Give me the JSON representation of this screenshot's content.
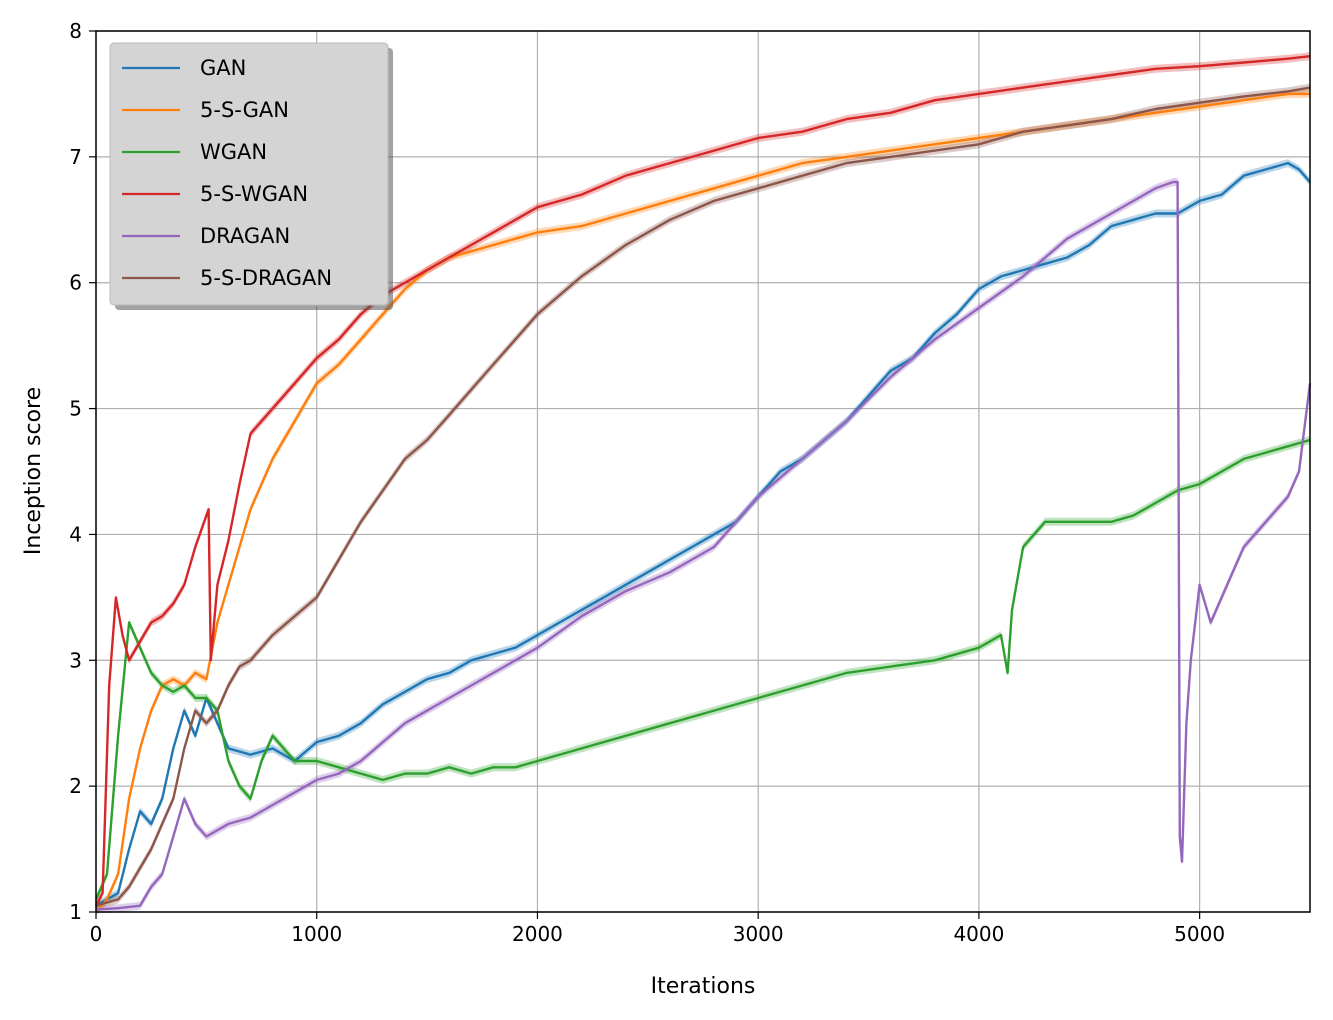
{
  "chart_data": {
    "type": "line",
    "title": "",
    "xlabel": "Iterations",
    "ylabel": "Inception score",
    "xlim": [
      0,
      5500
    ],
    "ylim": [
      1,
      8
    ],
    "xticks": [
      0,
      1000,
      2000,
      3000,
      4000,
      5000
    ],
    "yticks": [
      1,
      2,
      3,
      4,
      5,
      6,
      7,
      8
    ],
    "grid": true,
    "legend": "top-left",
    "series": [
      {
        "name": "GAN",
        "color": "#1f77b4",
        "x": [
          0,
          50,
          100,
          150,
          200,
          250,
          300,
          350,
          400,
          450,
          500,
          550,
          600,
          700,
          800,
          900,
          1000,
          1100,
          1200,
          1300,
          1400,
          1500,
          1600,
          1700,
          1800,
          1900,
          2000,
          2100,
          2200,
          2300,
          2400,
          2500,
          2600,
          2700,
          2800,
          2900,
          3000,
          3100,
          3200,
          3300,
          3400,
          3500,
          3600,
          3700,
          3800,
          3900,
          4000,
          4100,
          4200,
          4300,
          4400,
          4500,
          4600,
          4700,
          4800,
          4900,
          5000,
          5100,
          5200,
          5300,
          5400,
          5450,
          5500
        ],
        "y": [
          1.05,
          1.1,
          1.15,
          1.5,
          1.8,
          1.7,
          1.9,
          2.3,
          2.6,
          2.4,
          2.7,
          2.5,
          2.3,
          2.25,
          2.3,
          2.2,
          2.35,
          2.4,
          2.5,
          2.65,
          2.75,
          2.85,
          2.9,
          3.0,
          3.05,
          3.1,
          3.2,
          3.3,
          3.4,
          3.5,
          3.6,
          3.7,
          3.8,
          3.9,
          4.0,
          4.1,
          4.3,
          4.5,
          4.6,
          4.75,
          4.9,
          5.1,
          5.3,
          5.4,
          5.6,
          5.75,
          5.95,
          6.05,
          6.1,
          6.15,
          6.2,
          6.3,
          6.45,
          6.5,
          6.55,
          6.55,
          6.65,
          6.7,
          6.85,
          6.9,
          6.95,
          6.9,
          6.8
        ]
      },
      {
        "name": "5-S-GAN",
        "color": "#ff7f0e",
        "x": [
          0,
          50,
          100,
          150,
          200,
          250,
          300,
          350,
          400,
          450,
          500,
          550,
          600,
          650,
          700,
          800,
          900,
          1000,
          1100,
          1200,
          1300,
          1400,
          1500,
          1600,
          1700,
          1800,
          1900,
          2000,
          2200,
          2400,
          2600,
          2800,
          3000,
          3200,
          3400,
          3600,
          3800,
          4000,
          4200,
          4400,
          4600,
          4800,
          5000,
          5200,
          5400,
          5500
        ],
        "y": [
          1.0,
          1.1,
          1.3,
          1.9,
          2.3,
          2.6,
          2.8,
          2.85,
          2.8,
          2.9,
          2.85,
          3.3,
          3.6,
          3.9,
          4.2,
          4.6,
          4.9,
          5.2,
          5.35,
          5.55,
          5.75,
          5.95,
          6.1,
          6.2,
          6.25,
          6.3,
          6.35,
          6.4,
          6.45,
          6.55,
          6.65,
          6.75,
          6.85,
          6.95,
          7.0,
          7.05,
          7.1,
          7.15,
          7.2,
          7.25,
          7.3,
          7.35,
          7.4,
          7.45,
          7.5,
          7.5
        ]
      },
      {
        "name": "WGAN",
        "color": "#2ca02c",
        "x": [
          0,
          50,
          100,
          150,
          200,
          250,
          300,
          350,
          400,
          450,
          500,
          550,
          600,
          650,
          700,
          750,
          800,
          900,
          1000,
          1100,
          1200,
          1300,
          1400,
          1500,
          1600,
          1700,
          1800,
          1900,
          2000,
          2200,
          2400,
          2600,
          2800,
          3000,
          3200,
          3400,
          3600,
          3800,
          4000,
          4100,
          4130,
          4150,
          4200,
          4300,
          4400,
          4500,
          4600,
          4700,
          4800,
          4900,
          5000,
          5100,
          5200,
          5300,
          5400,
          5500
        ],
        "y": [
          1.1,
          1.3,
          2.4,
          3.3,
          3.1,
          2.9,
          2.8,
          2.75,
          2.8,
          2.7,
          2.7,
          2.6,
          2.2,
          2.0,
          1.9,
          2.2,
          2.4,
          2.2,
          2.2,
          2.15,
          2.1,
          2.05,
          2.1,
          2.1,
          2.15,
          2.1,
          2.15,
          2.15,
          2.2,
          2.3,
          2.4,
          2.5,
          2.6,
          2.7,
          2.8,
          2.9,
          2.95,
          3.0,
          3.1,
          3.2,
          2.9,
          3.4,
          3.9,
          4.1,
          4.1,
          4.1,
          4.1,
          4.15,
          4.25,
          4.35,
          4.4,
          4.5,
          4.6,
          4.65,
          4.7,
          4.75
        ]
      },
      {
        "name": "5-S-WGAN",
        "color": "#d62728",
        "x": [
          0,
          30,
          60,
          90,
          120,
          150,
          200,
          250,
          300,
          350,
          400,
          450,
          500,
          510,
          520,
          550,
          600,
          650,
          700,
          800,
          900,
          1000,
          1100,
          1200,
          1300,
          1400,
          1500,
          1600,
          1700,
          1800,
          1900,
          2000,
          2200,
          2400,
          2600,
          2800,
          3000,
          3200,
          3400,
          3600,
          3800,
          4000,
          4200,
          4400,
          4600,
          4800,
          5000,
          5200,
          5400,
          5500
        ],
        "y": [
          1.05,
          1.15,
          2.8,
          3.5,
          3.2,
          3.0,
          3.15,
          3.3,
          3.35,
          3.45,
          3.6,
          3.9,
          4.15,
          4.2,
          3.0,
          3.6,
          3.95,
          4.4,
          4.8,
          5.0,
          5.2,
          5.4,
          5.55,
          5.75,
          5.9,
          6.0,
          6.1,
          6.2,
          6.3,
          6.4,
          6.5,
          6.6,
          6.7,
          6.85,
          6.95,
          7.05,
          7.15,
          7.2,
          7.3,
          7.35,
          7.45,
          7.5,
          7.55,
          7.6,
          7.65,
          7.7,
          7.72,
          7.75,
          7.78,
          7.8
        ]
      },
      {
        "name": "DRAGAN",
        "color": "#9467bd",
        "x": [
          0,
          100,
          200,
          250,
          300,
          350,
          400,
          450,
          500,
          550,
          600,
          700,
          800,
          900,
          1000,
          1100,
          1200,
          1300,
          1400,
          1500,
          1600,
          1700,
          1800,
          1900,
          2000,
          2200,
          2400,
          2600,
          2800,
          3000,
          3200,
          3400,
          3600,
          3800,
          4000,
          4200,
          4400,
          4600,
          4800,
          4880,
          4900,
          4910,
          4920,
          4940,
          4960,
          5000,
          5050,
          5100,
          5150,
          5200,
          5300,
          5400,
          5450,
          5500
        ],
        "y": [
          1.02,
          1.03,
          1.05,
          1.2,
          1.3,
          1.6,
          1.9,
          1.7,
          1.6,
          1.65,
          1.7,
          1.75,
          1.85,
          1.95,
          2.05,
          2.1,
          2.2,
          2.35,
          2.5,
          2.6,
          2.7,
          2.8,
          2.9,
          3.0,
          3.1,
          3.35,
          3.55,
          3.7,
          3.9,
          4.3,
          4.6,
          4.9,
          5.25,
          5.55,
          5.8,
          6.05,
          6.35,
          6.55,
          6.75,
          6.8,
          6.8,
          1.6,
          1.4,
          2.5,
          3.0,
          3.6,
          3.3,
          3.5,
          3.7,
          3.9,
          4.1,
          4.3,
          4.5,
          5.2
        ]
      },
      {
        "name": "5-S-DRAGAN",
        "color": "#8c564b",
        "x": [
          0,
          100,
          150,
          200,
          250,
          300,
          350,
          400,
          450,
          500,
          550,
          600,
          650,
          700,
          800,
          900,
          1000,
          1100,
          1200,
          1300,
          1400,
          1500,
          1600,
          1700,
          1800,
          1900,
          2000,
          2100,
          2200,
          2400,
          2600,
          2800,
          3000,
          3200,
          3400,
          3600,
          3800,
          4000,
          4200,
          4400,
          4600,
          4800,
          5000,
          5200,
          5400,
          5500
        ],
        "y": [
          1.05,
          1.1,
          1.2,
          1.35,
          1.5,
          1.7,
          1.9,
          2.3,
          2.6,
          2.5,
          2.6,
          2.8,
          2.95,
          3.0,
          3.2,
          3.35,
          3.5,
          3.8,
          4.1,
          4.35,
          4.6,
          4.75,
          4.95,
          5.15,
          5.35,
          5.55,
          5.75,
          5.9,
          6.05,
          6.3,
          6.5,
          6.65,
          6.75,
          6.85,
          6.95,
          7.0,
          7.05,
          7.1,
          7.2,
          7.25,
          7.3,
          7.38,
          7.43,
          7.48,
          7.52,
          7.55
        ]
      }
    ]
  }
}
